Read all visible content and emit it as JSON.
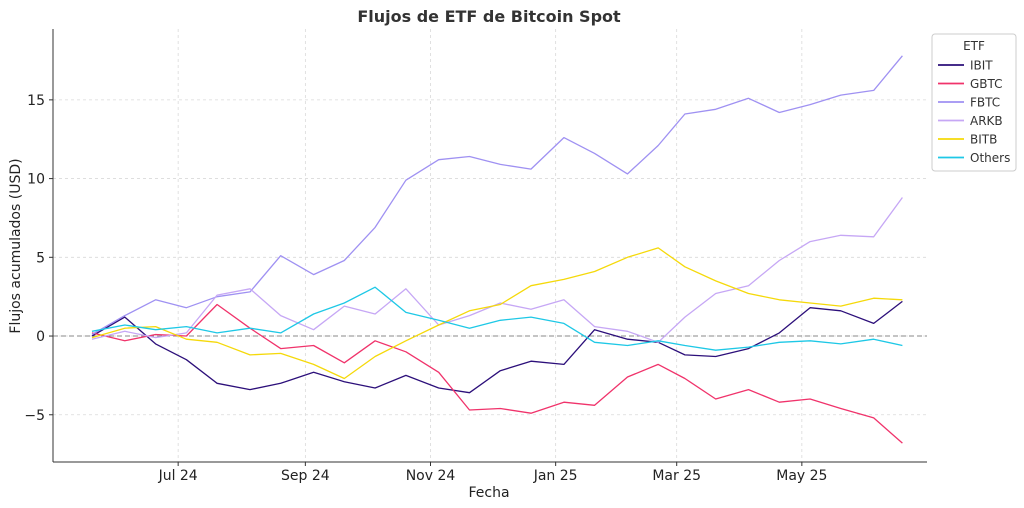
{
  "chart_data": {
    "type": "line",
    "title": "Flujos de ETF de Bitcoin Spot",
    "xlabel": "Fecha",
    "ylabel": "Flujos acumulados (USD)",
    "x_ticks": [
      "Jul 24",
      "Sep 24",
      "Nov 24",
      "Jan 25",
      "Mar 25",
      "May 25"
    ],
    "x_tick_dates": [
      "2024-07-01",
      "2024-09-01",
      "2024-11-01",
      "2025-01-01",
      "2025-03-01",
      "2025-05-01"
    ],
    "xlim": [
      "2024-05-01",
      "2025-07-01"
    ],
    "y_ticks": [
      -5,
      0,
      5,
      10,
      15
    ],
    "ylim": [
      -8,
      19.5
    ],
    "grid": true,
    "zero_line": true,
    "legend": {
      "title": "ETF",
      "placement": "top-right"
    },
    "x": [
      "2024-05-20",
      "2024-06-05",
      "2024-06-20",
      "2024-07-05",
      "2024-07-20",
      "2024-08-05",
      "2024-08-20",
      "2024-09-05",
      "2024-09-20",
      "2024-10-05",
      "2024-10-20",
      "2024-11-05",
      "2024-11-20",
      "2024-12-05",
      "2024-12-20",
      "2025-01-05",
      "2025-01-20",
      "2025-02-05",
      "2025-02-20",
      "2025-03-05",
      "2025-03-20",
      "2025-04-05",
      "2025-04-20",
      "2025-05-05",
      "2025-05-20",
      "2025-06-05",
      "2025-06-19"
    ],
    "series": [
      {
        "name": "IBIT",
        "color": "#2c0f7a",
        "values": [
          0.0,
          1.2,
          -0.5,
          -1.5,
          -3.0,
          -3.4,
          -3.0,
          -2.3,
          -2.9,
          -3.3,
          -2.5,
          -3.3,
          -3.6,
          -2.2,
          -1.6,
          -1.8,
          0.4,
          -0.2,
          -0.4,
          -1.2,
          -1.3,
          -0.8,
          0.2,
          1.8,
          1.6,
          0.8,
          2.2
        ]
      },
      {
        "name": "GBTC",
        "color": "#f0336b",
        "values": [
          0.2,
          -0.3,
          0.1,
          0.0,
          2.0,
          0.5,
          -0.8,
          -0.6,
          -1.7,
          -0.3,
          -1.0,
          -2.3,
          -4.7,
          -4.6,
          -4.9,
          -4.2,
          -4.4,
          -2.6,
          -1.8,
          -2.7,
          -4.0,
          -3.4,
          -4.2,
          -4.0,
          -4.6,
          -5.2,
          -6.8
        ]
      },
      {
        "name": "FBTC",
        "color": "#9f91f2",
        "values": [
          0.1,
          1.3,
          2.3,
          1.8,
          2.5,
          2.8,
          5.1,
          3.9,
          4.8,
          6.9,
          9.9,
          11.2,
          11.4,
          10.9,
          10.6,
          12.6,
          11.6,
          10.3,
          12.1,
          14.1,
          14.4,
          15.1,
          14.2,
          14.7,
          15.3,
          15.6,
          17.8
        ]
      },
      {
        "name": "ARKB",
        "color": "#c6a7f5",
        "values": [
          -0.2,
          0.3,
          -0.1,
          0.2,
          2.6,
          3.0,
          1.3,
          0.4,
          1.9,
          1.4,
          3.0,
          0.7,
          1.3,
          2.1,
          1.7,
          2.3,
          0.6,
          0.3,
          -0.4,
          1.2,
          2.7,
          3.2,
          4.8,
          6.0,
          6.4,
          6.3,
          8.8
        ]
      },
      {
        "name": "BITB",
        "color": "#f5d90a",
        "values": [
          -0.1,
          0.5,
          0.6,
          -0.2,
          -0.4,
          -1.2,
          -1.1,
          -1.8,
          -2.7,
          -1.3,
          -0.3,
          0.7,
          1.6,
          2.0,
          3.2,
          3.6,
          4.1,
          5.0,
          5.6,
          4.4,
          3.5,
          2.7,
          2.3,
          2.1,
          1.9,
          2.4,
          2.3
        ]
      },
      {
        "name": "Others",
        "color": "#1ec8e6",
        "values": [
          0.3,
          0.7,
          0.4,
          0.6,
          0.2,
          0.5,
          0.2,
          1.4,
          2.1,
          3.1,
          1.5,
          1.0,
          0.5,
          1.0,
          1.2,
          0.8,
          -0.4,
          -0.6,
          -0.3,
          -0.6,
          -0.9,
          -0.7,
          -0.4,
          -0.3,
          -0.5,
          -0.2,
          -0.6
        ]
      }
    ]
  }
}
